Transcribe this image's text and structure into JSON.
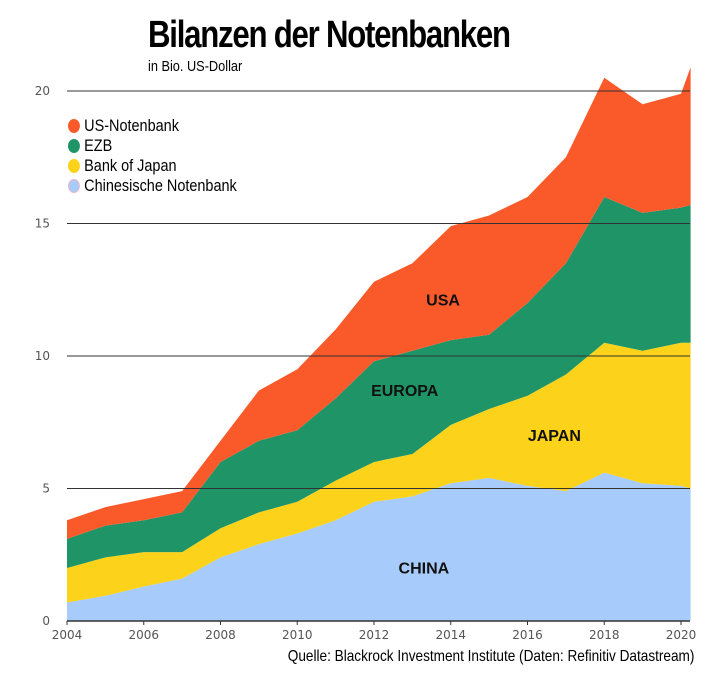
{
  "chart_data": {
    "type": "area",
    "stacked": true,
    "title": "Bilanzen der Notenbanken",
    "subtitle": "in Bio. US-Dollar",
    "xlabel": "",
    "ylabel": "",
    "xlim": [
      2004,
      2020.25
    ],
    "ylim": [
      0,
      21
    ],
    "grid": true,
    "x": [
      2004,
      2005,
      2006,
      2007,
      2008,
      2009,
      2010,
      2011,
      2012,
      2013,
      2014,
      2015,
      2016,
      2017,
      2018,
      2019,
      2020,
      2020.25
    ],
    "x_ticks": [
      "2004",
      "2006",
      "2008",
      "2010",
      "2012",
      "2014",
      "2016",
      "2018",
      "2020"
    ],
    "y_ticks": [
      "0",
      "5",
      "10",
      "15",
      "20"
    ],
    "legend_position": "top-left",
    "series": [
      {
        "name": "Chinesische Notenbank",
        "area_label": "CHINA",
        "color": "#a7cbfa",
        "values": [
          0.7,
          0.95,
          1.3,
          1.6,
          2.4,
          2.9,
          3.3,
          3.8,
          4.5,
          4.7,
          5.2,
          5.4,
          5.1,
          4.9,
          5.6,
          5.2,
          5.1,
          5.0
        ]
      },
      {
        "name": "Bank of Japan",
        "area_label": "JAPAN",
        "color": "#fcd21a",
        "values": [
          1.3,
          1.45,
          1.3,
          1.0,
          1.1,
          1.2,
          1.2,
          1.5,
          1.5,
          1.6,
          2.2,
          2.6,
          3.4,
          4.4,
          4.9,
          5.0,
          5.4,
          5.5
        ]
      },
      {
        "name": "EZB",
        "area_label": "EUROPA",
        "color": "#1f9467",
        "values": [
          1.1,
          1.2,
          1.2,
          1.5,
          2.5,
          2.7,
          2.7,
          3.1,
          3.8,
          3.9,
          3.2,
          2.8,
          3.5,
          4.2,
          5.5,
          5.2,
          5.1,
          5.2
        ]
      },
      {
        "name": "US-Notenbank",
        "area_label": "USA",
        "color": "#fa5a2a",
        "values": [
          0.7,
          0.7,
          0.8,
          0.8,
          0.8,
          1.9,
          2.3,
          2.6,
          3.0,
          3.3,
          4.3,
          4.5,
          4.0,
          4.0,
          4.5,
          4.1,
          4.3,
          5.2
        ]
      }
    ],
    "source": "Quelle: Blackrock Investment Institute (Daten: Refinitiv Datastream)"
  }
}
